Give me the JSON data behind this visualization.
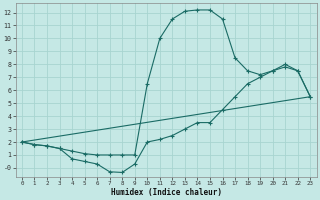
{
  "xlabel": "Humidex (Indice chaleur)",
  "bg_color": "#c5e8e5",
  "grid_color": "#a8d4d0",
  "line_color": "#1a6b65",
  "xlim": [
    -0.5,
    23.5
  ],
  "ylim": [
    -0.7,
    12.7
  ],
  "xticks": [
    0,
    1,
    2,
    3,
    4,
    5,
    6,
    7,
    8,
    9,
    10,
    11,
    12,
    13,
    14,
    15,
    16,
    17,
    18,
    19,
    20,
    21,
    22,
    23
  ],
  "yticks": [
    0,
    1,
    2,
    3,
    4,
    5,
    6,
    7,
    8,
    9,
    10,
    11,
    12
  ],
  "ytick_labels": [
    "-0",
    "1",
    "2",
    "3",
    "4",
    "5",
    "6",
    "7",
    "8",
    "9",
    "10",
    "11",
    "12"
  ],
  "curve1_x": [
    0,
    1,
    2,
    3,
    4,
    5,
    6,
    7,
    8,
    9,
    10,
    11,
    12,
    13,
    14,
    15,
    16,
    17,
    18,
    19,
    20,
    21,
    22,
    23
  ],
  "curve1_y": [
    2.0,
    1.8,
    1.7,
    1.5,
    1.3,
    1.1,
    1.0,
    1.0,
    1.0,
    1.0,
    6.5,
    10.0,
    11.5,
    12.1,
    12.2,
    12.2,
    11.5,
    8.5,
    7.5,
    7.2,
    7.5,
    8.0,
    7.5,
    5.5
  ],
  "curve2_x": [
    0,
    1,
    2,
    3,
    4,
    5,
    6,
    7,
    8,
    9,
    10,
    11,
    12,
    13,
    14,
    15,
    16,
    17,
    18,
    19,
    20,
    21,
    22,
    23
  ],
  "curve2_y": [
    2.0,
    1.8,
    1.7,
    1.5,
    0.7,
    0.5,
    0.3,
    -0.3,
    -0.35,
    0.3,
    2.0,
    2.2,
    2.5,
    3.0,
    3.5,
    3.5,
    4.5,
    5.5,
    6.5,
    7.0,
    7.5,
    7.8,
    7.5,
    5.5
  ],
  "line3_x": [
    0,
    23
  ],
  "line3_y": [
    2.0,
    5.5
  ]
}
